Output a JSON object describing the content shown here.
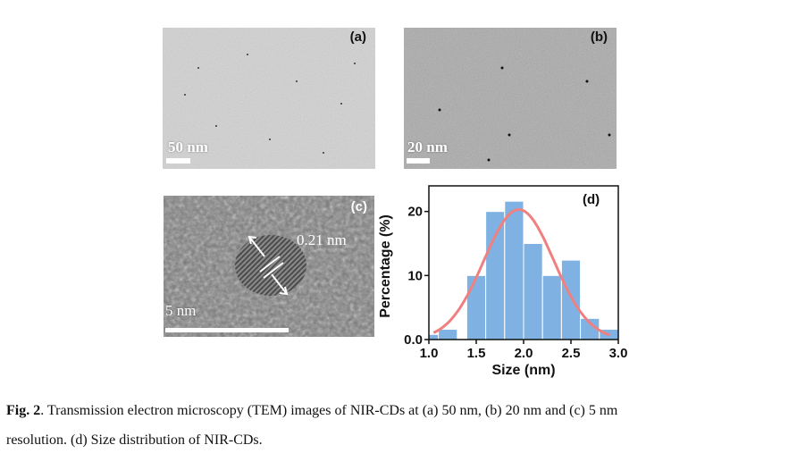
{
  "panels": {
    "a": {
      "label": "(a)",
      "scale_text": "50 nm"
    },
    "b": {
      "label": "(b)",
      "scale_text": "20 nm"
    },
    "c": {
      "label": "(c)",
      "scale_text": "5 nm",
      "lattice_text": "0.21 nm"
    }
  },
  "chart_data": {
    "type": "bar",
    "panel_label": "(d)",
    "xlabel": "Size (nm)",
    "ylabel": "Percentage (%)",
    "xlim": [
      1.0,
      3.0
    ],
    "ylim": [
      0,
      24
    ],
    "xticks": [
      "1.0",
      "1.5",
      "2.0",
      "2.5",
      "3.0"
    ],
    "yticks": [
      "0.0",
      "10",
      "20"
    ],
    "bins": [
      {
        "x0": 1.0,
        "x1": 1.1,
        "value": 0.8
      },
      {
        "x0": 1.1,
        "x1": 1.3,
        "value": 1.6
      },
      {
        "x0": 1.4,
        "x1": 1.6,
        "value": 10.0
      },
      {
        "x0": 1.6,
        "x1": 1.8,
        "value": 20.0
      },
      {
        "x0": 1.8,
        "x1": 2.0,
        "value": 21.6
      },
      {
        "x0": 2.0,
        "x1": 2.2,
        "value": 15.0
      },
      {
        "x0": 2.2,
        "x1": 2.4,
        "value": 10.0
      },
      {
        "x0": 2.4,
        "x1": 2.6,
        "value": 12.4
      },
      {
        "x0": 2.6,
        "x1": 2.8,
        "value": 3.3
      },
      {
        "x0": 2.8,
        "x1": 3.0,
        "value": 1.6
      }
    ],
    "fit": {
      "type": "gaussian",
      "mean": 1.95,
      "sigma": 0.37,
      "peak": 20.3
    },
    "bar_color": "#7fb2e3",
    "fit_color": "#f08080",
    "grid": false
  },
  "caption": {
    "fig_label": "Fig. 2",
    "text_line1": ". Transmission electron microscopy (TEM) images of NIR-CDs at (a) 50 nm, (b) 20 nm and (c) 5 nm",
    "text_line2": "resolution. (d) Size distribution of NIR-CDs."
  }
}
